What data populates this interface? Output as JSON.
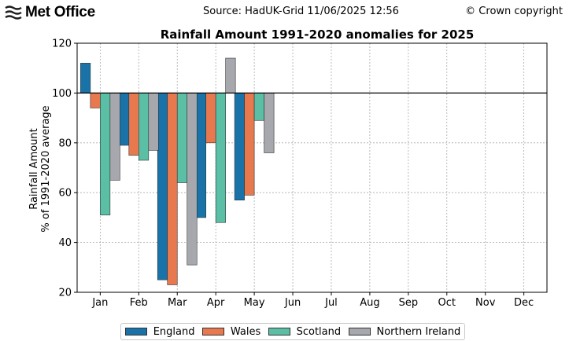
{
  "header": {
    "brand": "Met Office",
    "source": "Source: HadUK-Grid 11/06/2025 12:56",
    "copyright": "© Crown copyright"
  },
  "colors": {
    "England": "#1a73a8",
    "Wales": "#e8794f",
    "Scotland": "#5bbfa6",
    "Northern Ireland": "#a7a8ad",
    "reference_line": "#000000",
    "grid": "#aaaaaa"
  },
  "chart_data": {
    "type": "bar",
    "title": "Rainfall Amount 1991-2020 anomalies for 2025",
    "ylabel_line1": "Rainfall Amount",
    "ylabel_line2": "% of 1991-2020 average",
    "categories": [
      "Jan",
      "Feb",
      "Mar",
      "Apr",
      "May",
      "Jun",
      "Jul",
      "Aug",
      "Sep",
      "Oct",
      "Nov",
      "Dec"
    ],
    "ylim": [
      20,
      120
    ],
    "yticks": [
      20,
      40,
      60,
      80,
      100,
      120
    ],
    "baseline": 100,
    "grid": true,
    "legend_position": "bottom",
    "series": [
      {
        "name": "England",
        "values": [
          112,
          79,
          25,
          50,
          57,
          null,
          null,
          null,
          null,
          null,
          null,
          null
        ]
      },
      {
        "name": "Wales",
        "values": [
          94,
          75,
          23,
          80,
          59,
          null,
          null,
          null,
          null,
          null,
          null,
          null
        ]
      },
      {
        "name": "Scotland",
        "values": [
          51,
          73,
          64,
          48,
          89,
          null,
          null,
          null,
          null,
          null,
          null,
          null
        ]
      },
      {
        "name": "Northern Ireland",
        "values": [
          65,
          77,
          31,
          114,
          76,
          null,
          null,
          null,
          null,
          null,
          null,
          null
        ]
      }
    ]
  }
}
